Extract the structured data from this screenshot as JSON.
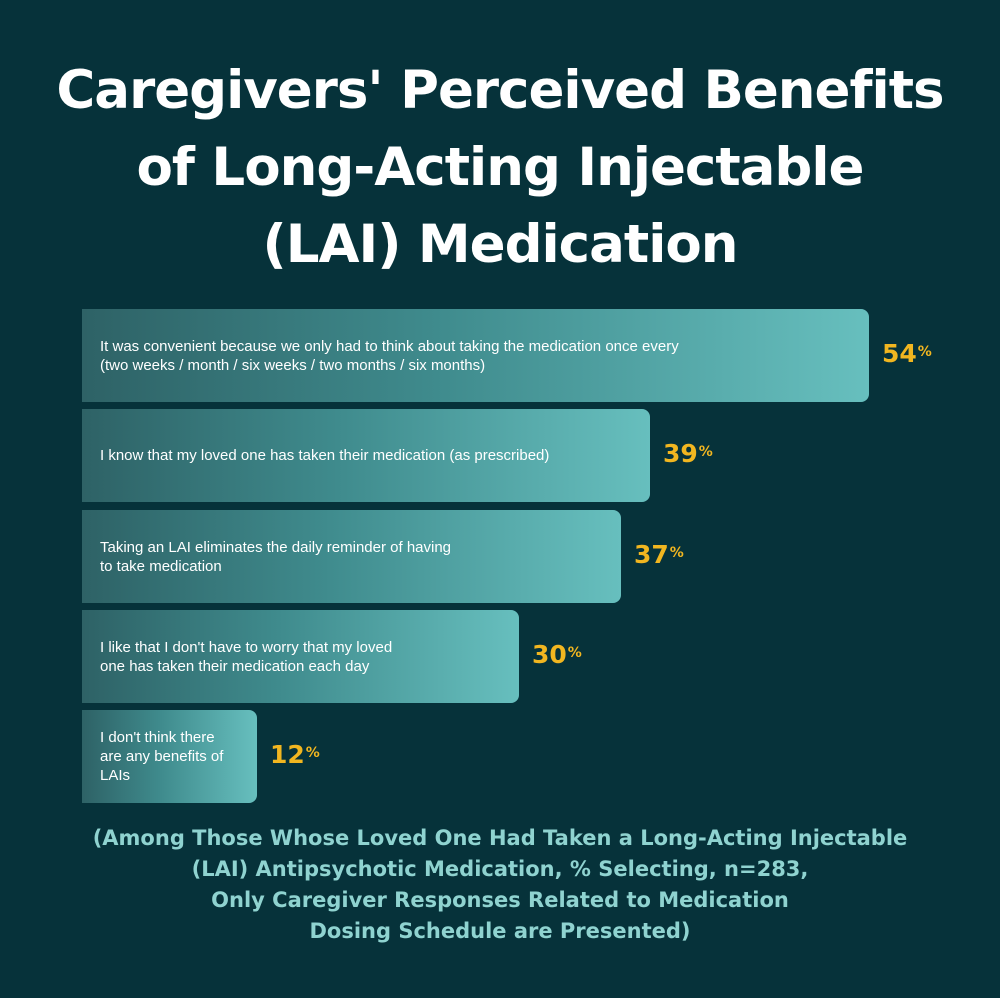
{
  "chart_data": {
    "type": "bar",
    "orientation": "horizontal",
    "title": "Caregivers' Perceived Benefits of Long-Acting Injectable (LAI) Medication",
    "title_lines": [
      "Caregivers' Perceived Benefits",
      "of Long-Acting Injectable",
      "(LAI) Medication"
    ],
    "categories": [
      [
        "It was convenient because we only had to think about taking the medication once every",
        "(two weeks / month / six weeks / two months / six months)"
      ],
      [
        "I know that my loved one has taken their medication (as prescribed)"
      ],
      [
        "Taking an LAI eliminates the daily reminder of having",
        "to take medication"
      ],
      [
        "I like that I don't have to worry that my loved",
        "one has taken their medication each day"
      ],
      [
        "I don't think there",
        "are any benefits of",
        "LAIs"
      ]
    ],
    "values": [
      54,
      39,
      37,
      30,
      12
    ],
    "value_unit": "%",
    "xlim": [
      0,
      54
    ],
    "footnote_lines": [
      "(Among Those Whose Loved One Had Taken a Long-Acting Injectable",
      "(LAI) Antipsychotic Medication, % Selecting, n=283,",
      "Only Caregiver Responses Related to Medication",
      "Dosing Schedule are Presented)"
    ],
    "colors": {
      "background": "#06323a",
      "bar_start": "#2e6266",
      "bar_end": "#67bfbe",
      "value_text": "#f1b620",
      "footnote_text": "#8fd3d0"
    }
  }
}
